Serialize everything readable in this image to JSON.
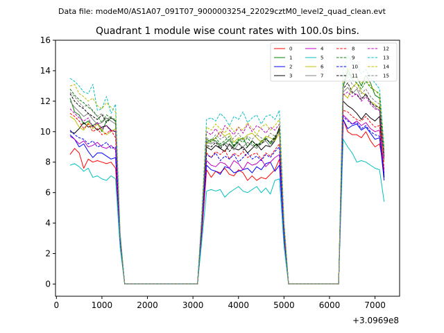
{
  "chart_data": {
    "type": "line",
    "suptitle": "Data file: modeM0/AS1A07_091T07_9000003254_22029cztM0_level2_quad_clean.evt",
    "title": "Quadrant 1 module wise count rates with 100.0s bins.",
    "xlabel": "",
    "ylabel": "",
    "x_offset_label": "+3.0969e8",
    "xlim": [
      -20,
      7540
    ],
    "ylim": [
      -0.8,
      16
    ],
    "xticks": [
      0,
      1000,
      2000,
      3000,
      4000,
      5000,
      6000,
      7000
    ],
    "yticks": [
      0,
      2,
      4,
      6,
      8,
      10,
      12,
      14,
      16
    ],
    "grid": false,
    "legend_position": "top-right",
    "legend_columns": 4,
    "x": [
      300,
      400,
      500,
      600,
      700,
      800,
      900,
      1000,
      1100,
      1200,
      1300,
      1400,
      1500,
      1600,
      3000,
      3100,
      3200,
      3300,
      3400,
      3500,
      3600,
      3700,
      3800,
      3900,
      4000,
      4100,
      4200,
      4300,
      4400,
      4500,
      4600,
      4700,
      4800,
      4900,
      5000,
      5100,
      5200,
      6100,
      6200,
      6300,
      6400,
      6500,
      6600,
      6700,
      6800,
      6900,
      7000,
      7100,
      7200
    ],
    "series": [
      {
        "name": "0",
        "color": "#ff0000",
        "dash": false,
        "values": [
          8.5,
          8.9,
          8.6,
          7.6,
          8.2,
          8.0,
          8.1,
          8.0,
          7.9,
          8.0,
          7.6,
          2.8,
          0,
          0,
          0,
          0,
          3.5,
          7.5,
          7.0,
          7.4,
          7.3,
          7.6,
          7.2,
          7.1,
          7.5,
          7.3,
          6.8,
          7.1,
          6.8,
          7.0,
          6.9,
          7.2,
          7.5,
          8.2,
          3.0,
          0,
          0,
          0,
          0,
          10.8,
          10.0,
          9.8,
          9.8,
          9.6,
          10.0,
          9.4,
          9.0,
          9.2,
          7.5
        ]
      },
      {
        "name": "1",
        "color": "#008000",
        "dash": false,
        "values": [
          12.2,
          11.3,
          11.1,
          10.5,
          10.7,
          10.4,
          10.6,
          10.0,
          10.7,
          10.9,
          10.7,
          3.1,
          0,
          0,
          0,
          0,
          4.6,
          9.3,
          9.5,
          9.4,
          9.1,
          9.2,
          9.5,
          9.0,
          9.4,
          9.6,
          9.0,
          9.4,
          9.1,
          9.3,
          9.6,
          9.2,
          9.5,
          10.1,
          3.8,
          0,
          0,
          0,
          0,
          12.9,
          14.1,
          13.5,
          13.6,
          13.0,
          13.7,
          13.2,
          12.4,
          12.2,
          8.5
        ]
      },
      {
        "name": "2",
        "color": "#0000ff",
        "dash": false,
        "values": [
          9.8,
          9.5,
          9.0,
          9.2,
          8.7,
          8.3,
          8.6,
          8.6,
          8.4,
          8.2,
          8.3,
          2.9,
          0,
          0,
          0,
          0,
          3.8,
          7.8,
          7.5,
          7.4,
          7.2,
          7.7,
          7.6,
          7.3,
          7.4,
          7.5,
          7.6,
          7.3,
          7.7,
          7.5,
          7.9,
          8.0,
          7.4,
          7.8,
          3.2,
          0,
          0,
          0,
          0,
          10.8,
          10.2,
          10.4,
          10.5,
          10.1,
          10.3,
          9.9,
          9.5,
          9.6,
          6.8
        ]
      },
      {
        "name": "3",
        "color": "#000000",
        "dash": false,
        "values": [
          10.0,
          9.9,
          10.2,
          10.6,
          10.3,
          10.4,
          10.1,
          10.3,
          10.4,
          10.1,
          10.0,
          3.0,
          0,
          0,
          0,
          0,
          4.2,
          9.0,
          8.8,
          9.1,
          8.9,
          8.7,
          9.2,
          8.9,
          8.8,
          9.0,
          8.6,
          8.9,
          9.2,
          8.8,
          9.1,
          9.0,
          9.4,
          10.3,
          3.6,
          0,
          0,
          0,
          0,
          12.0,
          11.7,
          11.5,
          11.2,
          10.8,
          11.2,
          10.9,
          10.7,
          11.0,
          7.0
        ]
      },
      {
        "name": "4",
        "color": "#bf00bf",
        "dash": false,
        "values": [
          9.7,
          9.5,
          9.2,
          9.4,
          9.0,
          9.1,
          9.3,
          9.0,
          8.9,
          9.1,
          8.8,
          2.9,
          0,
          0,
          0,
          0,
          3.9,
          8.1,
          7.8,
          7.7,
          8.0,
          7.9,
          7.6,
          8.1,
          7.9,
          7.5,
          8.0,
          7.8,
          7.9,
          8.2,
          7.7,
          8.0,
          8.3,
          8.5,
          3.3,
          0,
          0,
          0,
          0,
          11.1,
          10.8,
          10.5,
          10.7,
          10.4,
          10.6,
          10.2,
          10.0,
          10.1,
          7.3
        ]
      },
      {
        "name": "5",
        "color": "#00bfbf",
        "dash": false,
        "values": [
          7.8,
          7.9,
          7.7,
          7.4,
          7.6,
          7.0,
          7.1,
          6.9,
          6.8,
          7.1,
          6.9,
          2.4,
          0,
          0,
          0,
          0,
          3.0,
          6.1,
          6.2,
          6.1,
          6.2,
          5.7,
          6.0,
          6.2,
          6.4,
          6.1,
          6.0,
          6.2,
          6.4,
          6.0,
          6.3,
          5.9,
          6.8,
          6.9,
          2.5,
          0,
          0,
          0,
          0,
          9.5,
          9.0,
          8.6,
          8.0,
          8.1,
          8.0,
          7.8,
          7.6,
          7.5,
          5.4
        ]
      },
      {
        "name": "6",
        "color": "#bfbf00",
        "dash": false,
        "values": [
          11.0,
          10.8,
          10.3,
          10.1,
          10.6,
          10.2,
          10.5,
          10.1,
          9.8,
          10.0,
          10.2,
          3.1,
          0,
          0,
          0,
          0,
          4.4,
          9.2,
          9.4,
          9.6,
          10.0,
          9.7,
          9.9,
          9.3,
          9.6,
          9.5,
          9.8,
          9.9,
          9.6,
          9.3,
          9.7,
          9.6,
          9.4,
          9.9,
          3.7,
          0,
          0,
          0,
          0,
          12.5,
          12.2,
          12.9,
          13.2,
          12.6,
          12.4,
          12.0,
          11.8,
          11.5,
          8.0
        ]
      },
      {
        "name": "7",
        "color": "#808080",
        "dash": false,
        "values": [
          12.0,
          11.6,
          11.3,
          11.0,
          11.2,
          10.8,
          10.5,
          10.6,
          10.9,
          10.7,
          10.5,
          3.1,
          0,
          0,
          0,
          0,
          4.4,
          9.3,
          9.2,
          9.4,
          9.0,
          9.3,
          9.1,
          8.8,
          9.2,
          9.0,
          9.3,
          9.1,
          8.9,
          9.2,
          9.4,
          9.0,
          9.6,
          10.0,
          3.7,
          0,
          0,
          0,
          0,
          12.6,
          12.9,
          12.5,
          12.8,
          12.2,
          12.4,
          12.0,
          11.6,
          11.4,
          8.1
        ]
      },
      {
        "name": "8",
        "color": "#ff0000",
        "dash": true,
        "values": [
          11.2,
          11.0,
          10.7,
          10.2,
          10.5,
          10.0,
          10.2,
          9.8,
          9.9,
          10.1,
          9.6,
          3.0,
          0,
          0,
          0,
          0,
          4.1,
          8.6,
          8.3,
          8.7,
          8.5,
          8.8,
          8.2,
          8.6,
          8.4,
          8.7,
          8.3,
          8.5,
          8.6,
          8.2,
          8.6,
          8.4,
          8.8,
          9.2,
          3.4,
          0,
          0,
          0,
          0,
          11.4,
          11.3,
          11.0,
          10.8,
          10.7,
          11.0,
          10.6,
          10.3,
          10.4,
          7.6
        ]
      },
      {
        "name": "9",
        "color": "#008000",
        "dash": true,
        "values": [
          12.8,
          12.4,
          12.1,
          11.9,
          11.6,
          11.4,
          11.0,
          10.6,
          11.1,
          10.9,
          10.8,
          3.2,
          0,
          0,
          0,
          0,
          4.5,
          9.5,
          9.3,
          9.6,
          9.2,
          9.4,
          9.7,
          9.1,
          9.5,
          9.3,
          9.6,
          9.2,
          9.0,
          9.4,
          9.5,
          9.3,
          9.7,
          10.1,
          3.8,
          0,
          0,
          0,
          0,
          13.2,
          13.9,
          13.4,
          13.2,
          12.8,
          13.3,
          12.9,
          12.7,
          12.5,
          8.7
        ]
      },
      {
        "name": "10",
        "color": "#0000ff",
        "dash": true,
        "values": [
          10.1,
          9.8,
          9.6,
          9.5,
          9.2,
          9.4,
          9.0,
          9.1,
          9.3,
          8.9,
          9.0,
          2.9,
          0,
          0,
          0,
          0,
          4.0,
          8.5,
          8.3,
          8.6,
          8.1,
          8.4,
          8.2,
          8.5,
          8.0,
          8.3,
          8.6,
          8.2,
          8.4,
          8.1,
          8.5,
          8.3,
          8.7,
          9.0,
          3.3,
          0,
          0,
          0,
          0,
          11.0,
          10.7,
          10.5,
          10.6,
          10.2,
          10.4,
          10.0,
          9.8,
          9.7,
          7.1
        ]
      },
      {
        "name": "11",
        "color": "#000000",
        "dash": true,
        "values": [
          12.5,
          12.0,
          11.7,
          11.5,
          11.2,
          11.0,
          10.8,
          11.1,
          10.6,
          10.9,
          10.7,
          3.1,
          0,
          0,
          0,
          0,
          4.4,
          9.1,
          9.0,
          9.3,
          8.9,
          9.2,
          8.7,
          9.1,
          9.3,
          8.8,
          9.0,
          9.4,
          9.1,
          9.2,
          9.5,
          9.3,
          9.6,
          10.2,
          3.7,
          0,
          0,
          0,
          0,
          12.8,
          13.2,
          12.6,
          12.4,
          12.1,
          12.5,
          11.9,
          11.7,
          11.6,
          8.3
        ]
      },
      {
        "name": "12",
        "color": "#bf00bf",
        "dash": true,
        "values": [
          11.5,
          11.2,
          10.9,
          10.7,
          10.9,
          10.3,
          10.6,
          10.2,
          10.4,
          10.0,
          10.1,
          3.1,
          0,
          0,
          0,
          0,
          4.6,
          10.0,
          9.8,
          10.2,
          9.7,
          10.4,
          10.1,
          9.8,
          10.3,
          9.9,
          10.5,
          10.0,
          10.4,
          10.2,
          9.9,
          10.3,
          10.1,
          10.5,
          3.9,
          0,
          0,
          0,
          0,
          12.4,
          12.6,
          12.3,
          12.5,
          12.0,
          12.3,
          11.8,
          11.5,
          11.4,
          8.2
        ]
      },
      {
        "name": "13",
        "color": "#00bfbf",
        "dash": true,
        "values": [
          13.5,
          13.3,
          13.0,
          12.6,
          12.5,
          13.1,
          11.4,
          11.5,
          12.3,
          11.2,
          11.8,
          3.4,
          0,
          0,
          0,
          0,
          5.0,
          10.8,
          10.9,
          10.7,
          11.2,
          10.9,
          10.4,
          11.0,
          10.8,
          11.3,
          10.6,
          10.9,
          11.1,
          10.5,
          11.0,
          11.1,
          10.8,
          11.4,
          4.2,
          0,
          0,
          0,
          0,
          14.0,
          15.0,
          14.6,
          14.3,
          13.8,
          14.1,
          13.5,
          13.2,
          12.8,
          9.0
        ]
      },
      {
        "name": "14",
        "color": "#bfbf00",
        "dash": true,
        "values": [
          13.0,
          13.1,
          12.5,
          12.3,
          12.0,
          12.2,
          11.7,
          11.5,
          11.9,
          11.6,
          11.3,
          3.3,
          0,
          0,
          0,
          0,
          4.8,
          10.3,
          10.1,
          10.5,
          10.2,
          9.9,
          10.4,
          10.0,
          10.3,
          10.1,
          10.6,
          10.2,
          9.8,
          10.3,
          10.5,
          10.1,
          10.4,
          10.8,
          4.0,
          0,
          0,
          0,
          0,
          13.6,
          14.2,
          13.9,
          13.5,
          13.2,
          13.4,
          13.0,
          12.7,
          12.4,
          8.8
        ]
      },
      {
        "name": "15",
        "color": "#808080",
        "dash": true,
        "values": [
          12.6,
          12.3,
          11.9,
          11.6,
          11.8,
          11.3,
          11.0,
          11.2,
          10.8,
          11.0,
          10.6,
          3.2,
          0,
          0,
          0,
          0,
          4.5,
          9.6,
          9.4,
          9.8,
          9.5,
          9.7,
          9.3,
          9.6,
          9.9,
          9.4,
          9.7,
          9.5,
          9.8,
          9.6,
          9.4,
          9.9,
          9.7,
          10.0,
          3.8,
          0,
          0,
          0,
          0,
          13.0,
          13.6,
          13.1,
          12.9,
          12.5,
          12.8,
          12.3,
          12.0,
          11.8,
          8.5
        ]
      }
    ]
  }
}
